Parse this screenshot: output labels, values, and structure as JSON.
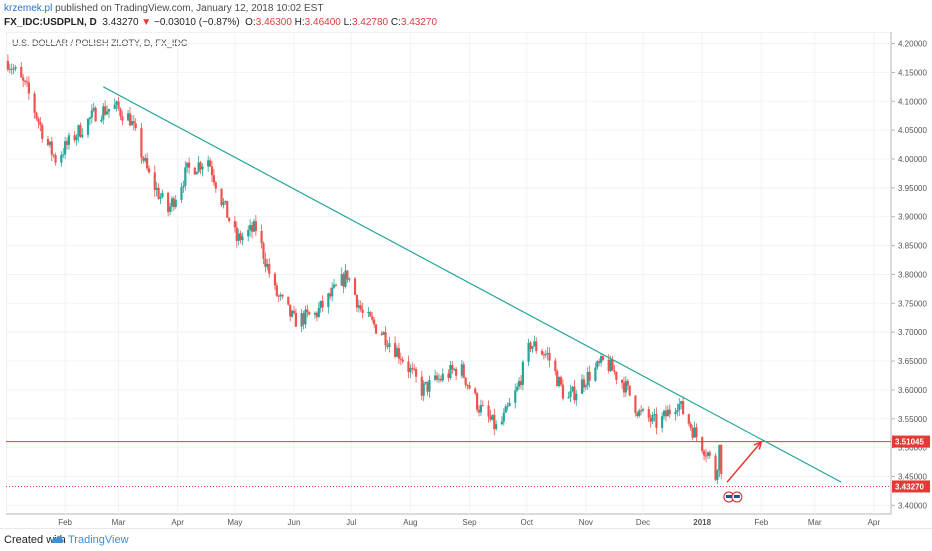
{
  "header": {
    "author": "krzemek.pl",
    "published": " published on TradingView.com, January 12, 2018 10:02 EST",
    "symbol": "FX_IDC:USDPLN, D",
    "last": "3.43270",
    "down_arrow": "▼",
    "change": "−0.03010 (−0.87%)",
    "o_label": "O:",
    "o_val": "3.46300",
    "h_label": "H:",
    "h_val": "3.46400",
    "l_label": "L:",
    "l_val": "3.42780",
    "c_label": "C:",
    "c_val": "3.43270"
  },
  "footer": {
    "created": "Created with",
    "brand": "TradingView",
    "logo_icon": "tradingview-cloud-icon"
  },
  "colors": {
    "up": "#26a69a",
    "down": "#ef5350",
    "trend": "#26a69a",
    "level": "#e53935",
    "arrow": "#e53935",
    "grid": "#f0f3fa",
    "axis_text": "#555555"
  },
  "chart_data": {
    "type": "candlestick",
    "title": "U.S. DOLLAR / POLISH ZLOTY, D, FX_IDC",
    "ylim": [
      3.385,
      4.22
    ],
    "y_ticks": [
      "4.20000",
      "4.15000",
      "4.10000",
      "4.05000",
      "4.00000",
      "3.95000",
      "3.90000",
      "3.85000",
      "3.80000",
      "3.75000",
      "3.70000",
      "3.65000",
      "3.60000",
      "3.55000",
      "3.50000",
      "3.45000",
      "3.40000"
    ],
    "x_ticks": [
      "Feb",
      "Mar",
      "Apr",
      "May",
      "Jun",
      "Jul",
      "Aug",
      "Sep",
      "Oct",
      "Nov",
      "Dec",
      "2018",
      "Feb",
      "Mar",
      "Apr"
    ],
    "date_range": [
      "2017-01-01",
      "2018-04-10"
    ],
    "price_path": [
      [
        "2017-01-02",
        4.17
      ],
      [
        "2017-01-12",
        4.12
      ],
      [
        "2017-01-22",
        4.03
      ],
      [
        "2017-01-27",
        4.0
      ],
      [
        "2017-02-06",
        4.04
      ],
      [
        "2017-02-17",
        4.08
      ],
      [
        "2017-02-27",
        4.09
      ],
      [
        "2017-03-07",
        4.07
      ],
      [
        "2017-03-17",
        3.97
      ],
      [
        "2017-03-27",
        3.91
      ],
      [
        "2017-04-06",
        3.98
      ],
      [
        "2017-04-17",
        4.0
      ],
      [
        "2017-04-24",
        3.93
      ],
      [
        "2017-05-02",
        3.86
      ],
      [
        "2017-05-12",
        3.88
      ],
      [
        "2017-05-22",
        3.77
      ],
      [
        "2017-06-01",
        3.72
      ],
      [
        "2017-06-12",
        3.73
      ],
      [
        "2017-06-22",
        3.77
      ],
      [
        "2017-06-29",
        3.8
      ],
      [
        "2017-07-07",
        3.73
      ],
      [
        "2017-07-17",
        3.7
      ],
      [
        "2017-07-27",
        3.66
      ],
      [
        "2017-08-07",
        3.6
      ],
      [
        "2017-08-17",
        3.62
      ],
      [
        "2017-08-27",
        3.64
      ],
      [
        "2017-09-06",
        3.57
      ],
      [
        "2017-09-16",
        3.53
      ],
      [
        "2017-09-26",
        3.6
      ],
      [
        "2017-10-03",
        3.68
      ],
      [
        "2017-10-12",
        3.66
      ],
      [
        "2017-10-22",
        3.58
      ],
      [
        "2017-11-01",
        3.62
      ],
      [
        "2017-11-11",
        3.65
      ],
      [
        "2017-11-21",
        3.61
      ],
      [
        "2017-11-29",
        3.56
      ],
      [
        "2017-12-09",
        3.54
      ],
      [
        "2017-12-19",
        3.58
      ],
      [
        "2017-12-29",
        3.52
      ],
      [
        "2018-01-04",
        3.49
      ],
      [
        "2018-01-08",
        3.45
      ],
      [
        "2018-01-10",
        3.5
      ],
      [
        "2018-01-12",
        3.433
      ]
    ],
    "trendline": [
      [
        "2017-02-21",
        4.125
      ],
      [
        "2018-03-15",
        3.44
      ]
    ],
    "horizontal_levels": [
      {
        "price": 3.51045,
        "label": "3.51045",
        "style": "solid"
      },
      {
        "price": 3.4327,
        "label": "3.43270",
        "style": "dotted"
      }
    ],
    "arrow": [
      [
        "2018-01-14",
        3.44
      ],
      [
        "2018-02-01",
        3.51
      ]
    ]
  }
}
